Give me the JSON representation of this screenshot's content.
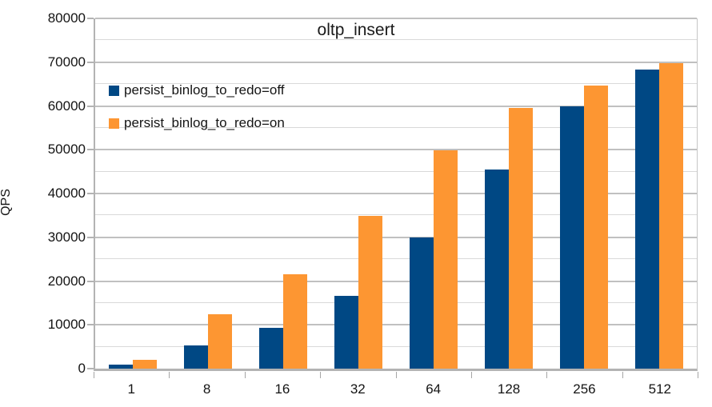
{
  "chart_data": {
    "type": "bar",
    "title": "oltp_insert",
    "ylabel": "QPS",
    "categories": [
      "1",
      "8",
      "16",
      "32",
      "64",
      "128",
      "256",
      "512"
    ],
    "series": [
      {
        "name": "persist_binlog_to_redo=off",
        "color": "#004884",
        "values": [
          1000,
          5300,
          9300,
          16700,
          29900,
          45500,
          60000,
          68300
        ]
      },
      {
        "name": "persist_binlog_to_redo=on",
        "color": "#fd9632",
        "values": [
          2100,
          12400,
          21500,
          34900,
          49900,
          59600,
          64600,
          69700
        ]
      }
    ],
    "ylim": [
      0,
      80000
    ],
    "y_major_step": 10000,
    "y_minor_step": 5000,
    "grid": true,
    "legend_position": "inside-top-left"
  },
  "colors": {
    "major_grid": "#c0c0c0",
    "minor_grid": "#d9d9d9",
    "axis_line": "#b3b3b3",
    "text": "#141414"
  }
}
